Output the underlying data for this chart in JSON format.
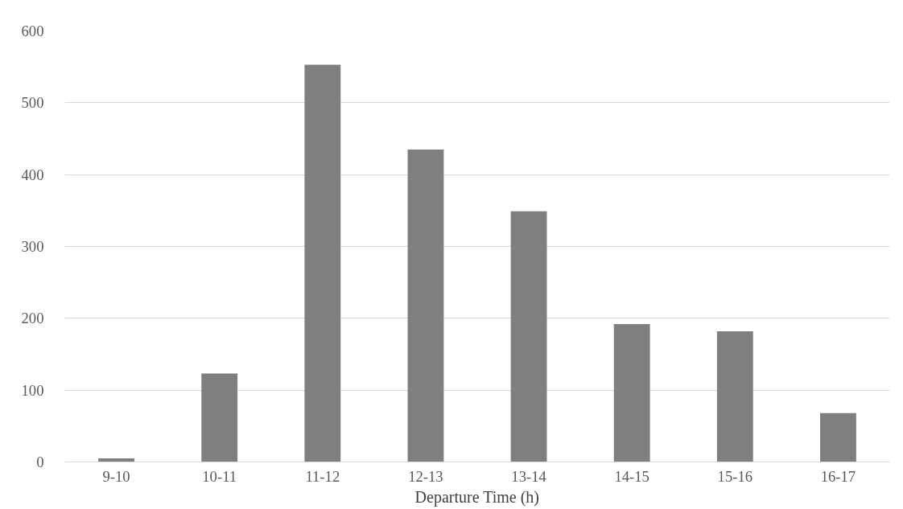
{
  "chart_data": {
    "type": "bar",
    "xlabel": "Departure Time (h)",
    "categories": [
      "9-10",
      "10-11",
      "11-12",
      "12-13",
      "13-14",
      "14-15",
      "15-16",
      "16-17"
    ],
    "values": [
      5,
      123,
      553,
      435,
      349,
      192,
      182,
      68
    ],
    "color": "#7f7f7f",
    "ylim": [
      0,
      600
    ],
    "yticks": [
      0,
      100,
      200,
      300,
      400,
      500,
      600
    ],
    "grid": "y"
  }
}
